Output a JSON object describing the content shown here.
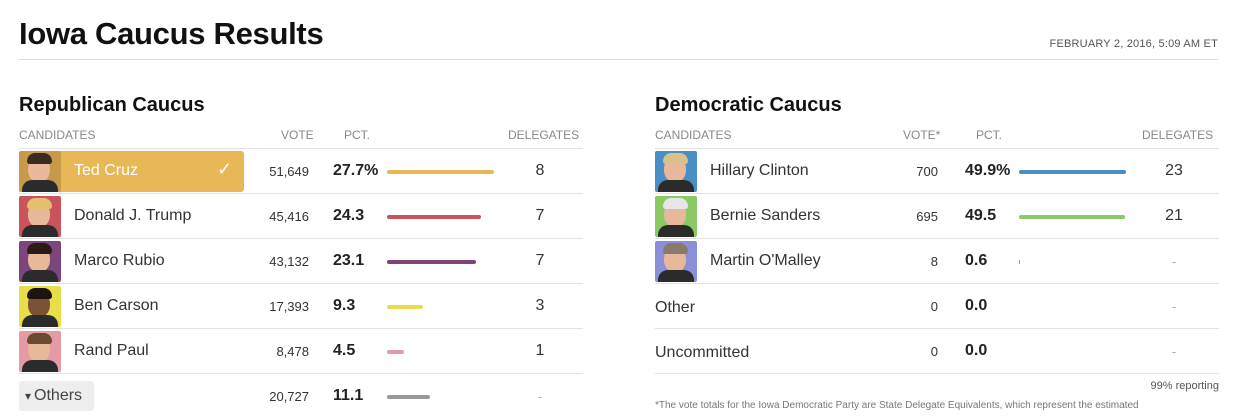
{
  "page": {
    "title": "Iowa Caucus Results",
    "timestamp": "FEBRUARY 2, 2016, 5:09 AM ET"
  },
  "republican": {
    "title": "Republican Caucus",
    "headers": {
      "candidates": "CANDIDATES",
      "vote": "VOTE",
      "pct": "PCT.",
      "delegates": "DELEGATES"
    },
    "candidates": [
      {
        "name": "Ted Cruz",
        "vote": "51,649",
        "pct": "27.7%",
        "pct_value": 27.7,
        "delegates": "8",
        "bar_color": "#e8b857",
        "winner": true,
        "hair": "#3a2a20",
        "bg": "#c79a4a"
      },
      {
        "name": "Donald J. Trump",
        "vote": "45,416",
        "pct": "24.3",
        "pct_value": 24.3,
        "delegates": "7",
        "bar_color": "#c9545b",
        "winner": false,
        "hair": "#e2c070",
        "bg": "#c9545b"
      },
      {
        "name": "Marco Rubio",
        "vote": "43,132",
        "pct": "23.1",
        "pct_value": 23.1,
        "delegates": "7",
        "bar_color": "#7c467d",
        "winner": false,
        "hair": "#2a1c14",
        "bg": "#7c467d"
      },
      {
        "name": "Ben Carson",
        "vote": "17,393",
        "pct": "9.3",
        "pct_value": 9.3,
        "delegates": "3",
        "bar_color": "#e8de4a",
        "winner": false,
        "hair": "#1e140e",
        "bg": "#e8de4a",
        "skin": "#7b5236"
      },
      {
        "name": "Rand Paul",
        "vote": "8,478",
        "pct": "4.5",
        "pct_value": 4.5,
        "delegates": "1",
        "bar_color": "#e59aa6",
        "winner": false,
        "hair": "#6b4a32",
        "bg": "#e59aa6"
      }
    ],
    "others": {
      "label": "Others",
      "arrow": "▾",
      "vote": "20,727",
      "pct": "11.1",
      "pct_value": 11.1,
      "delegates": "-",
      "bar_color": "#999999"
    }
  },
  "democratic": {
    "title": "Democratic Caucus",
    "headers": {
      "candidates": "CANDIDATES",
      "vote": "VOTE*",
      "pct": "PCT.",
      "delegates": "DELEGATES"
    },
    "candidates": [
      {
        "name": "Hillary Clinton",
        "vote": "700",
        "pct": "49.9%",
        "pct_value": 49.9,
        "delegates": "23",
        "bar_color": "#4a8fc4",
        "photo": true,
        "hair": "#d9c28a",
        "bg": "#4a8fc4"
      },
      {
        "name": "Bernie Sanders",
        "vote": "695",
        "pct": "49.5",
        "pct_value": 49.5,
        "delegates": "21",
        "bar_color": "#8cc865",
        "photo": true,
        "hair": "#e6e6e6",
        "bg": "#8cc865"
      },
      {
        "name": "Martin O'Malley",
        "vote": "8",
        "pct": "0.6",
        "pct_value": 0.6,
        "delegates": "-",
        "bar_color": "#8a8fd8",
        "photo": true,
        "hair": "#8a7a6a",
        "bg": "#8a8fd8"
      },
      {
        "name": "Other",
        "vote": "0",
        "pct": "0.0",
        "pct_value": 0,
        "delegates": "-",
        "bar_color": "#999999",
        "photo": false
      },
      {
        "name": "Uncommitted",
        "vote": "0",
        "pct": "0.0",
        "pct_value": 0,
        "delegates": "-",
        "bar_color": "#999999",
        "photo": false
      }
    ],
    "reporting": "99% reporting",
    "footnote": "*The vote totals for the Iowa Democratic Party are State Delegate Equivalents, which represent the estimated"
  }
}
